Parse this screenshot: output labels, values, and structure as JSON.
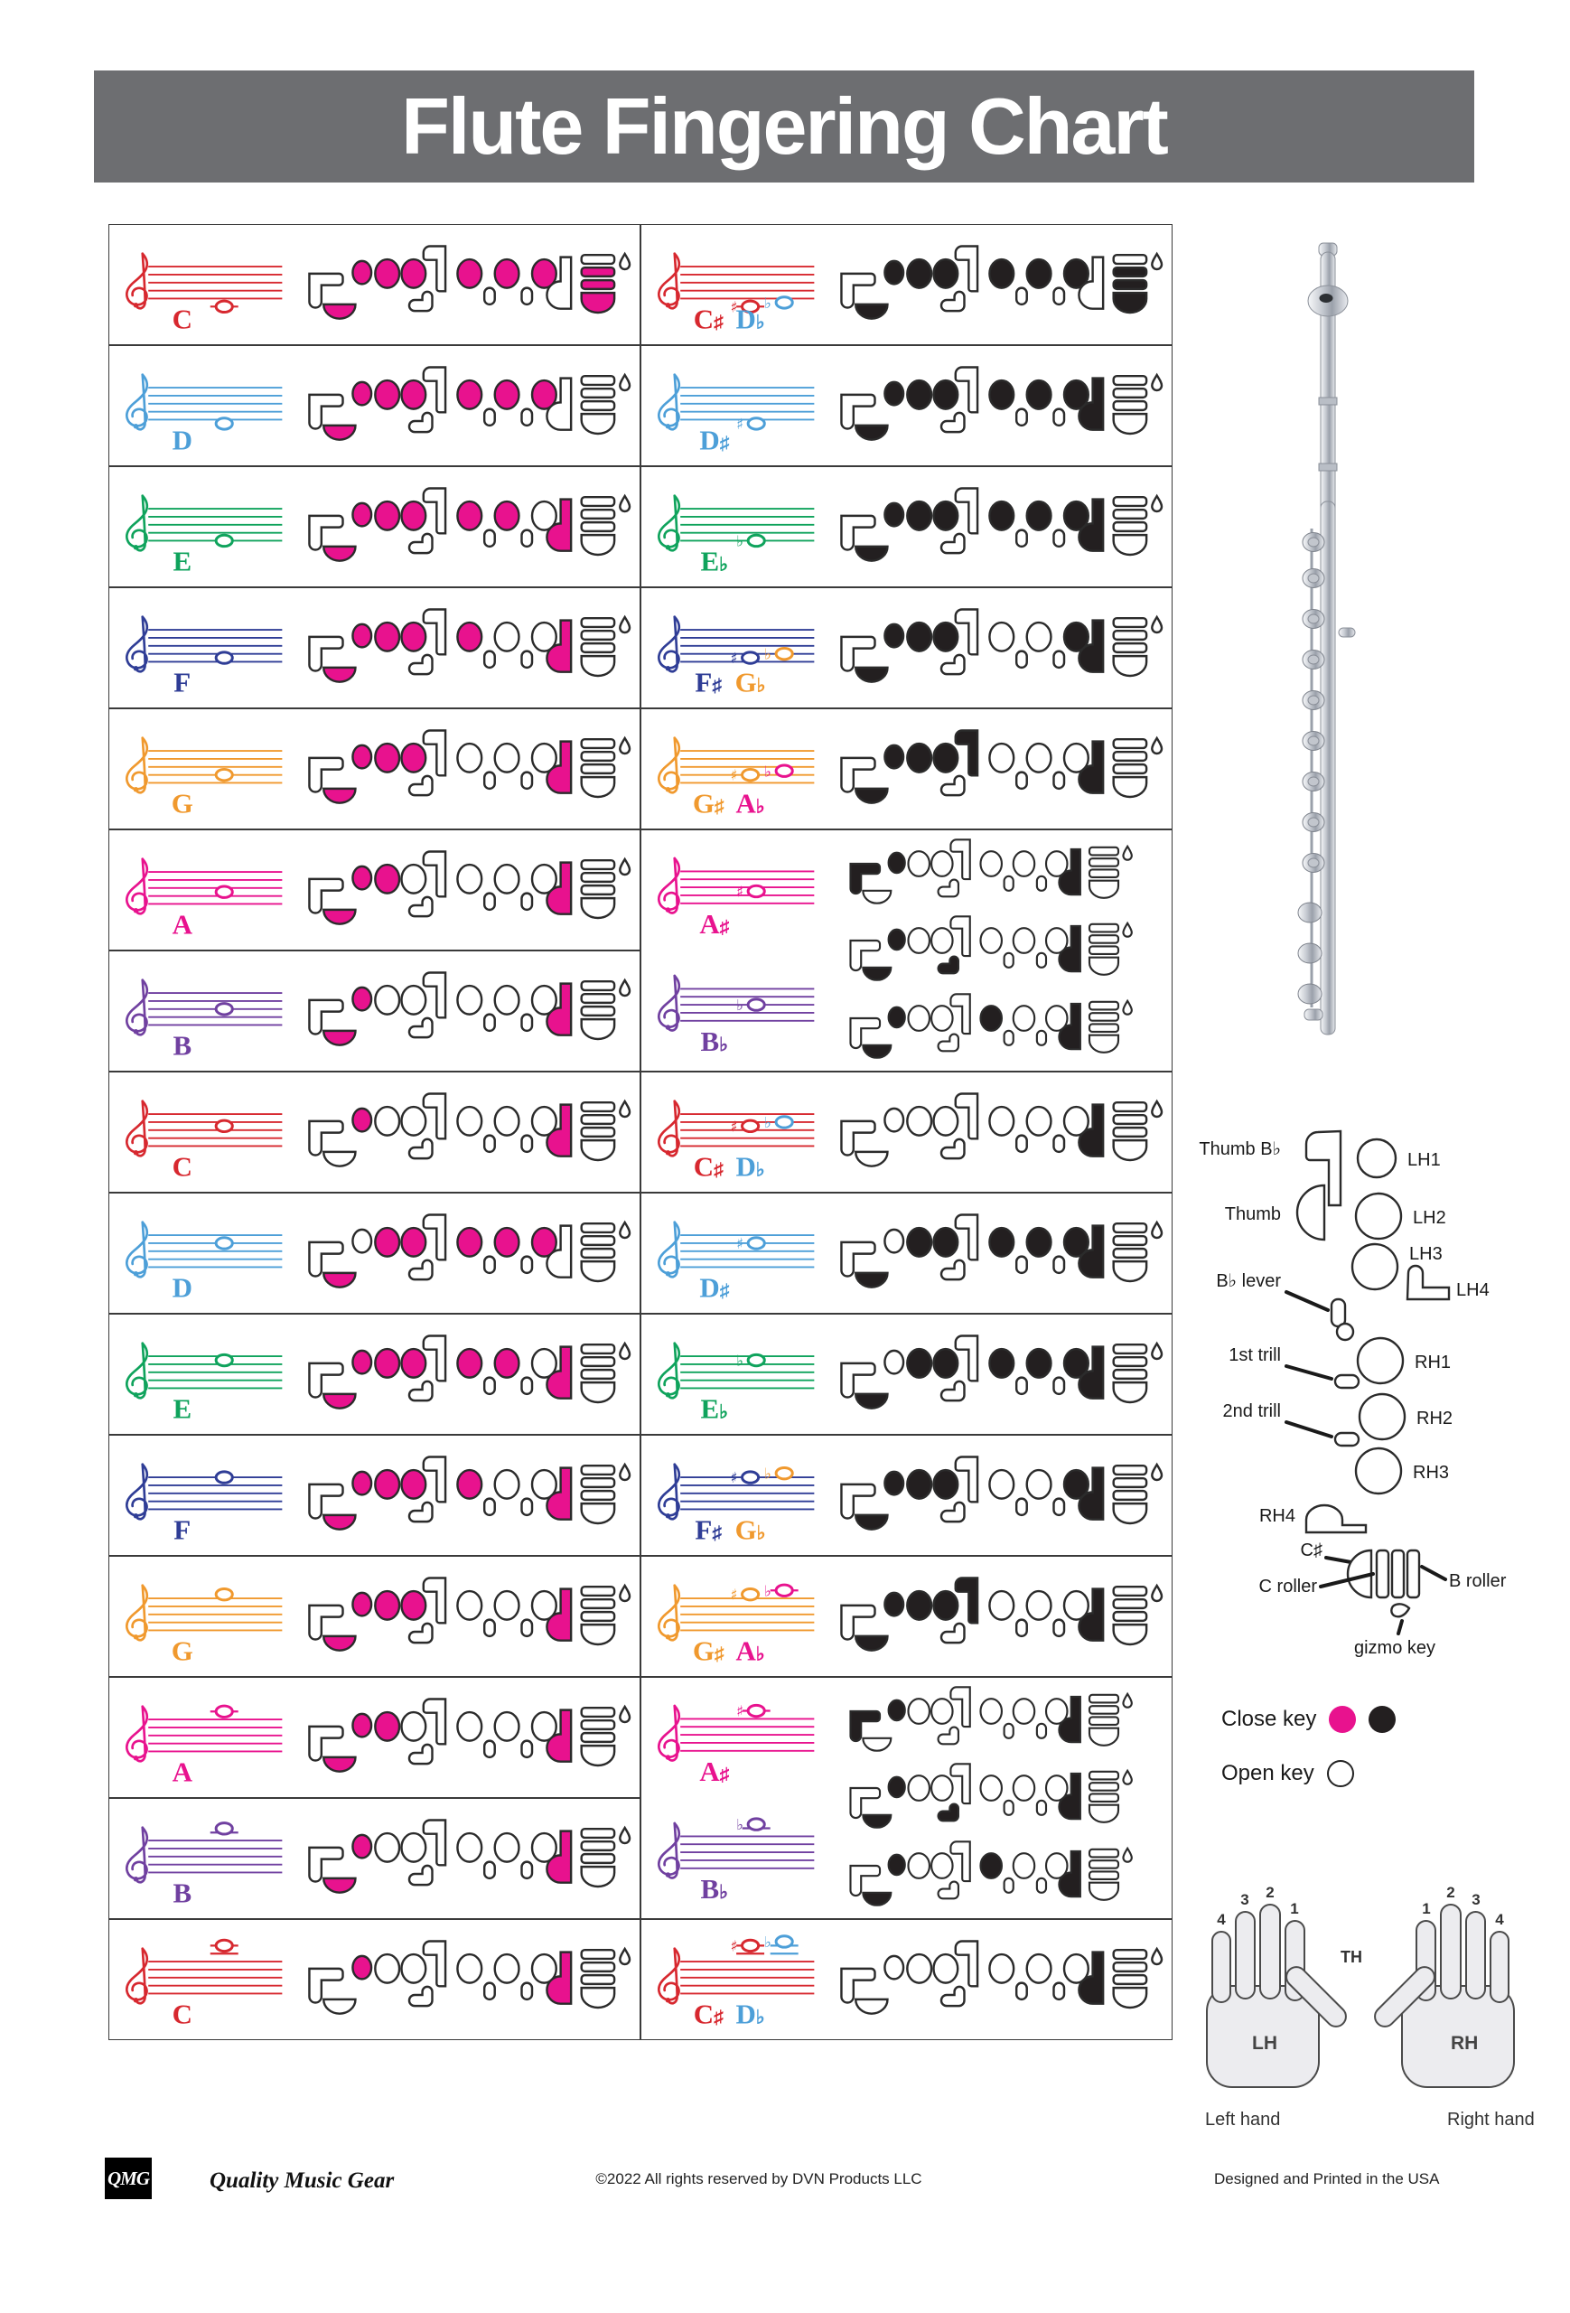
{
  "title": "Flute Fingering Chart",
  "palette": {
    "C": "#D7282F",
    "D": "#4D9FD8",
    "E": "#0FA35C",
    "F": "#2F3D96",
    "G": "#F0992E",
    "A": "#E8128E",
    "B": "#7040A0"
  },
  "ink": {
    "closed_left": "#E8128E",
    "closed_right": "#231F20",
    "open": "#FFFFFF",
    "outline": "#2B2B2B",
    "staff_border": "#3A3A3A"
  },
  "title_bar_color": "#6d6e71",
  "rows": [
    {
      "id": "c4",
      "left": {
        "staff": "C",
        "notes": [
          {
            "step": 0,
            "acc": "",
            "color": "C"
          }
        ],
        "labels": [
          {
            "letter": "C",
            "acc": "",
            "color": "C"
          }
        ],
        "keys": "th lh1 lh2 lh3 rh1 rh2 rh3 f2 f3 f4"
      },
      "right": {
        "staff": "C",
        "notes": [
          {
            "step": 0,
            "acc": "♯",
            "color": "C"
          },
          {
            "step": 1,
            "acc": "♭",
            "color": "D"
          }
        ],
        "labels": [
          {
            "letter": "C",
            "acc": "♯",
            "color": "C"
          },
          {
            "letter": "D",
            "acc": "♭",
            "color": "D"
          }
        ],
        "keys": "th lh1 lh2 lh3 rh1 rh2 rh3 f2 f3 f4"
      }
    },
    {
      "id": "d4",
      "left": {
        "staff": "D",
        "notes": [
          {
            "step": 1,
            "acc": "",
            "color": "D"
          }
        ],
        "labels": [
          {
            "letter": "D",
            "acc": "",
            "color": "D"
          }
        ],
        "keys": "th lh1 lh2 lh3 rh1 rh2 rh3"
      },
      "right": {
        "staff": "D",
        "notes": [
          {
            "step": 1,
            "acc": "♯",
            "color": "D"
          }
        ],
        "labels": [
          {
            "letter": "D",
            "acc": "♯",
            "color": "D"
          }
        ],
        "keys": "th lh1 lh2 lh3 rh1 rh2 rh3 rh4"
      }
    },
    {
      "id": "e4",
      "left": {
        "staff": "E",
        "notes": [
          {
            "step": 2,
            "acc": "",
            "color": "E"
          }
        ],
        "labels": [
          {
            "letter": "E",
            "acc": "",
            "color": "E"
          }
        ],
        "keys": "th lh1 lh2 lh3 rh1 rh2 rh4"
      },
      "right": {
        "staff": "E",
        "notes": [
          {
            "step": 2,
            "acc": "♭",
            "color": "E"
          }
        ],
        "labels": [
          {
            "letter": "E",
            "acc": "♭",
            "color": "E"
          }
        ],
        "keys": "th lh1 lh2 lh3 rh1 rh2 rh3 rh4"
      }
    },
    {
      "id": "f4",
      "left": {
        "staff": "F",
        "notes": [
          {
            "step": 3,
            "acc": "",
            "color": "F"
          }
        ],
        "labels": [
          {
            "letter": "F",
            "acc": "",
            "color": "F"
          }
        ],
        "keys": "th lh1 lh2 lh3 rh1 rh4"
      },
      "right": {
        "staff": "F",
        "notes": [
          {
            "step": 3,
            "acc": "♯",
            "color": "F"
          },
          {
            "step": 4,
            "acc": "♭",
            "color": "G"
          }
        ],
        "labels": [
          {
            "letter": "F",
            "acc": "♯",
            "color": "F"
          },
          {
            "letter": "G",
            "acc": "♭",
            "color": "G"
          }
        ],
        "keys": "th lh1 lh2 lh3 rh3 rh4"
      }
    },
    {
      "id": "g4",
      "left": {
        "staff": "G",
        "notes": [
          {
            "step": 4,
            "acc": "",
            "color": "G"
          }
        ],
        "labels": [
          {
            "letter": "G",
            "acc": "",
            "color": "G"
          }
        ],
        "keys": "th lh1 lh2 lh3 rh4"
      },
      "right": {
        "staff": "G",
        "notes": [
          {
            "step": 4,
            "acc": "♯",
            "color": "G"
          },
          {
            "step": 5,
            "acc": "♭",
            "color": "A"
          }
        ],
        "labels": [
          {
            "letter": "G",
            "acc": "♯",
            "color": "G"
          },
          {
            "letter": "A",
            "acc": "♭",
            "color": "A"
          }
        ],
        "keys": "th lh1 lh2 lh3 lh4 rh4"
      }
    },
    {
      "id": "a4",
      "left": {
        "staff": "A",
        "notes": [
          {
            "step": 5,
            "acc": "",
            "color": "A"
          }
        ],
        "labels": [
          {
            "letter": "A",
            "acc": "",
            "color": "A"
          }
        ],
        "keys": "th lh1 lh2 rh4"
      },
      "right": {
        "rowspan": 2,
        "staves": [
          {
            "staff": "A",
            "notes": [
              {
                "step": 5,
                "acc": "♯",
                "color": "A"
              }
            ],
            "labels": [
              {
                "letter": "A",
                "acc": "♯",
                "color": "A"
              }
            ]
          },
          {
            "staff": "B",
            "notes": [
              {
                "step": 6,
                "acc": "♭",
                "color": "B"
              }
            ],
            "labels": [
              {
                "letter": "B",
                "acc": "♭",
                "color": "B"
              }
            ]
          }
        ],
        "fingerings": [
          "tbb lh1 rh4",
          "th lh1 bbl rh4",
          "th lh1 rh1 rh4"
        ]
      }
    },
    {
      "id": "b4",
      "left": {
        "staff": "B",
        "notes": [
          {
            "step": 6,
            "acc": "",
            "color": "B"
          }
        ],
        "labels": [
          {
            "letter": "B",
            "acc": "",
            "color": "B"
          }
        ],
        "keys": "th lh1 rh4"
      },
      "right": null
    },
    {
      "id": "c5",
      "left": {
        "staff": "C",
        "notes": [
          {
            "step": 7,
            "acc": "",
            "color": "C"
          }
        ],
        "labels": [
          {
            "letter": "C",
            "acc": "",
            "color": "C"
          }
        ],
        "keys": "lh1 rh4"
      },
      "right": {
        "staff": "C",
        "notes": [
          {
            "step": 7,
            "acc": "♯",
            "color": "C"
          },
          {
            "step": 8,
            "acc": "♭",
            "color": "D"
          }
        ],
        "labels": [
          {
            "letter": "C",
            "acc": "♯",
            "color": "C"
          },
          {
            "letter": "D",
            "acc": "♭",
            "color": "D"
          }
        ],
        "keys": "rh4"
      }
    },
    {
      "id": "d5",
      "left": {
        "staff": "D",
        "notes": [
          {
            "step": 8,
            "acc": "",
            "color": "D"
          }
        ],
        "labels": [
          {
            "letter": "D",
            "acc": "",
            "color": "D"
          }
        ],
        "keys": "th lh2 lh3 rh1 rh2 rh3"
      },
      "right": {
        "staff": "D",
        "notes": [
          {
            "step": 8,
            "acc": "♯",
            "color": "D"
          }
        ],
        "labels": [
          {
            "letter": "D",
            "acc": "♯",
            "color": "D"
          }
        ],
        "keys": "th lh2 lh3 rh1 rh2 rh3 rh4"
      }
    },
    {
      "id": "e5",
      "left": {
        "staff": "E",
        "notes": [
          {
            "step": 9,
            "acc": "",
            "color": "E"
          }
        ],
        "labels": [
          {
            "letter": "E",
            "acc": "",
            "color": "E"
          }
        ],
        "keys": "th lh1 lh2 lh3 rh1 rh2 rh4"
      },
      "right": {
        "staff": "E",
        "notes": [
          {
            "step": 9,
            "acc": "♭",
            "color": "E"
          }
        ],
        "labels": [
          {
            "letter": "E",
            "acc": "♭",
            "color": "E"
          }
        ],
        "keys": "th lh2 lh3 rh1 rh2 rh3 rh4"
      }
    },
    {
      "id": "f5",
      "left": {
        "staff": "F",
        "notes": [
          {
            "step": 10,
            "acc": "",
            "color": "F"
          }
        ],
        "labels": [
          {
            "letter": "F",
            "acc": "",
            "color": "F"
          }
        ],
        "keys": "th lh1 lh2 lh3 rh1 rh4"
      },
      "right": {
        "staff": "F",
        "notes": [
          {
            "step": 10,
            "acc": "♯",
            "color": "F"
          },
          {
            "step": 11,
            "acc": "♭",
            "color": "G"
          }
        ],
        "labels": [
          {
            "letter": "F",
            "acc": "♯",
            "color": "F"
          },
          {
            "letter": "G",
            "acc": "♭",
            "color": "G"
          }
        ],
        "keys": "th lh1 lh2 lh3 rh3 rh4"
      }
    },
    {
      "id": "g5",
      "left": {
        "staff": "G",
        "notes": [
          {
            "step": 11,
            "acc": "",
            "color": "G"
          }
        ],
        "labels": [
          {
            "letter": "G",
            "acc": "",
            "color": "G"
          }
        ],
        "keys": "th lh1 lh2 lh3 rh4"
      },
      "right": {
        "staff": "G",
        "notes": [
          {
            "step": 11,
            "acc": "♯",
            "color": "G"
          },
          {
            "step": 12,
            "acc": "♭",
            "color": "A"
          }
        ],
        "labels": [
          {
            "letter": "G",
            "acc": "♯",
            "color": "G"
          },
          {
            "letter": "A",
            "acc": "♭",
            "color": "A"
          }
        ],
        "keys": "th lh1 lh2 lh3 lh4 rh4"
      }
    },
    {
      "id": "a5",
      "left": {
        "staff": "A",
        "notes": [
          {
            "step": 12,
            "acc": "",
            "color": "A"
          }
        ],
        "labels": [
          {
            "letter": "A",
            "acc": "",
            "color": "A"
          }
        ],
        "keys": "th lh1 lh2 rh4"
      },
      "right": {
        "rowspan": 2,
        "staves": [
          {
            "staff": "A",
            "notes": [
              {
                "step": 12,
                "acc": "♯",
                "color": "A"
              }
            ],
            "labels": [
              {
                "letter": "A",
                "acc": "♯",
                "color": "A"
              }
            ]
          },
          {
            "staff": "B",
            "notes": [
              {
                "step": 13,
                "acc": "♭",
                "color": "B"
              }
            ],
            "labels": [
              {
                "letter": "B",
                "acc": "♭",
                "color": "B"
              }
            ]
          }
        ],
        "fingerings": [
          "tbb lh1 rh4",
          "th lh1 bbl rh4",
          "th lh1 rh1 rh4"
        ]
      }
    },
    {
      "id": "b5",
      "left": {
        "staff": "B",
        "notes": [
          {
            "step": 13,
            "acc": "",
            "color": "B"
          }
        ],
        "labels": [
          {
            "letter": "B",
            "acc": "",
            "color": "B"
          }
        ],
        "keys": "th lh1 rh4"
      },
      "right": null
    },
    {
      "id": "c6",
      "left": {
        "staff": "C",
        "notes": [
          {
            "step": 14,
            "acc": "",
            "color": "C"
          }
        ],
        "labels": [
          {
            "letter": "C",
            "acc": "",
            "color": "C"
          }
        ],
        "keys": "lh1 rh4"
      },
      "right": {
        "staff": "C",
        "notes": [
          {
            "step": 14,
            "acc": "♯",
            "color": "C"
          },
          {
            "step": 15,
            "acc": "♭",
            "color": "D"
          }
        ],
        "labels": [
          {
            "letter": "C",
            "acc": "♯",
            "color": "C"
          },
          {
            "letter": "D",
            "acc": "♭",
            "color": "D"
          }
        ],
        "keys": "rh4"
      }
    }
  ],
  "key_legend": {
    "labels": {
      "thumb_bb": "Thumb B♭",
      "thumb": "Thumb",
      "lh1": "LH1",
      "lh2": "LH2",
      "lh3": "LH3",
      "lh4": "LH4",
      "bb_lever": "B♭ lever",
      "trill1": "1st trill",
      "trill2": "2nd trill",
      "rh1": "RH1",
      "rh2": "RH2",
      "rh3": "RH3",
      "rh4": "RH4",
      "c_sharp": "C♯",
      "c_roller": "C roller",
      "b_roller": "B roller",
      "gizmo": "gizmo key"
    },
    "close_key": "Close key",
    "open_key": "Open key"
  },
  "hands": {
    "left_label": "LH",
    "right_label": "RH",
    "thumb_label": "TH",
    "left_caption": "Left hand",
    "right_caption": "Right hand",
    "left_fingers": [
      "4",
      "3",
      "2",
      "1"
    ],
    "right_fingers": [
      "1",
      "2",
      "3",
      "4"
    ]
  },
  "footer": {
    "logo": "QMG",
    "tagline": "Quality Music Gear",
    "copyright": "©2022 All rights reserved by DVN Products LLC",
    "printed": "Designed and Printed in the USA"
  }
}
